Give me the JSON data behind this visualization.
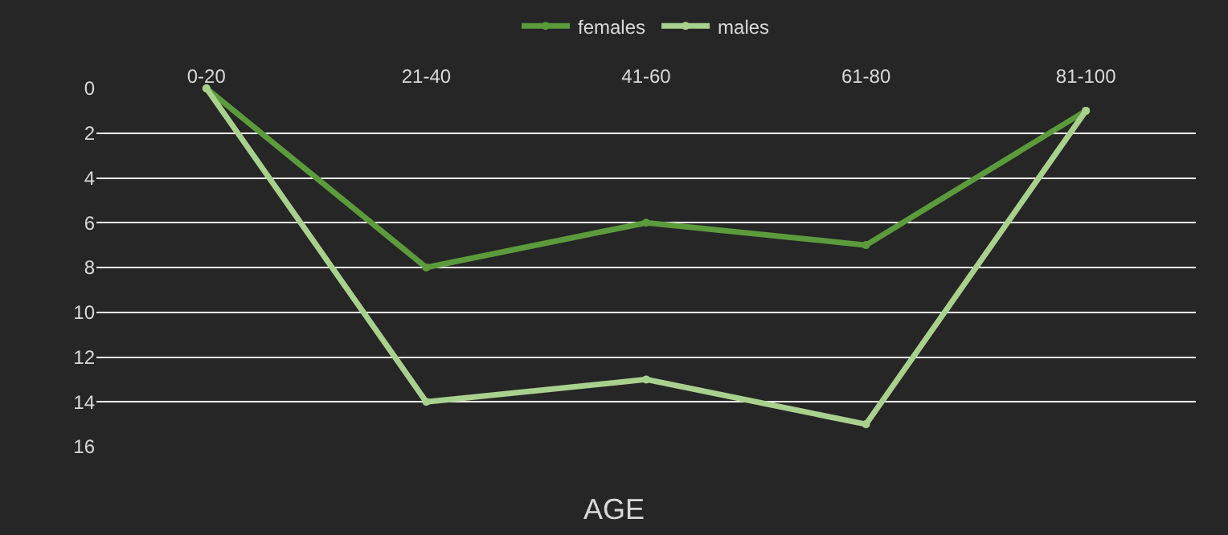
{
  "chart_data": {
    "type": "line",
    "title": "AGE",
    "categories": [
      "0-20",
      "21-40",
      "41-60",
      "61-80",
      "81-100"
    ],
    "series": [
      {
        "name": "females",
        "color": "#5b9b3c",
        "values": [
          0,
          8,
          6,
          7,
          1
        ]
      },
      {
        "name": "males",
        "color": "#a9d18e",
        "values": [
          0,
          14,
          13,
          15,
          1
        ]
      }
    ],
    "ylim": [
      16,
      0
    ],
    "yticks": [
      0,
      2,
      4,
      6,
      8,
      10,
      12,
      14,
      16
    ],
    "grid": "y",
    "legend": "top",
    "marker": "circle",
    "line_style": "solid"
  }
}
